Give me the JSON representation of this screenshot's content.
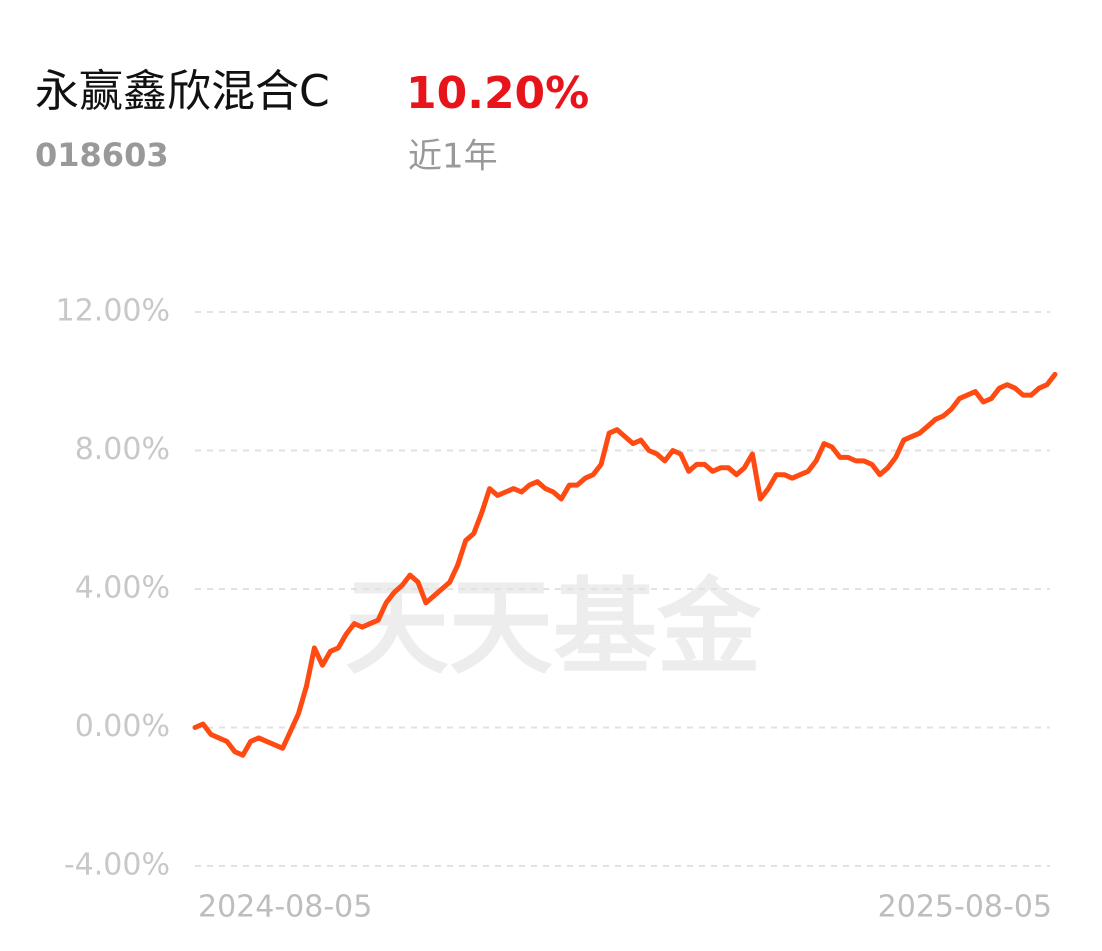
{
  "header": {
    "name": "永赢鑫欣混合C",
    "return": "10.20%",
    "code": "018603",
    "period": "近1年"
  },
  "watermark": "天天基金",
  "chart_data": {
    "type": "line",
    "categories": [
      "2024-08-05",
      null,
      null,
      null,
      null,
      null,
      null,
      null,
      null,
      null,
      null,
      null,
      null,
      null,
      null,
      null,
      null,
      null,
      null,
      null,
      null,
      null,
      null,
      null,
      null,
      null,
      null,
      null,
      null,
      null,
      null,
      null,
      null,
      null,
      null,
      null,
      null,
      null,
      null,
      null,
      null,
      null,
      null,
      null,
      null,
      null,
      null,
      null,
      null,
      null,
      null,
      null,
      null,
      null,
      null,
      null,
      null,
      null,
      null,
      null,
      null,
      null,
      null,
      null,
      null,
      null,
      null,
      null,
      null,
      null,
      null,
      null,
      null,
      null,
      null,
      null,
      null,
      null,
      null,
      null,
      null,
      null,
      null,
      null,
      null,
      null,
      null,
      null,
      null,
      null,
      null,
      null,
      null,
      null,
      null,
      null,
      null,
      null,
      null,
      null,
      null,
      null,
      null,
      null,
      null,
      null,
      null,
      null,
      "2025-08-05"
    ],
    "series": [
      {
        "color": "#ff4a12",
        "values": [
          0.0,
          0.1,
          -0.2,
          -0.3,
          -0.4,
          -0.7,
          -0.8,
          -0.4,
          -0.3,
          -0.4,
          -0.5,
          -0.6,
          -0.1,
          0.4,
          1.2,
          2.3,
          1.8,
          2.2,
          2.3,
          2.7,
          3.0,
          2.9,
          3.0,
          3.1,
          3.6,
          3.9,
          4.1,
          4.4,
          4.2,
          3.6,
          3.8,
          4.0,
          4.2,
          4.7,
          5.4,
          5.6,
          6.2,
          6.9,
          6.7,
          6.8,
          6.9,
          6.8,
          7.0,
          7.1,
          6.9,
          6.8,
          6.6,
          7.0,
          7.0,
          7.2,
          7.3,
          7.6,
          8.5,
          8.6,
          8.4,
          8.2,
          8.3,
          8.0,
          7.9,
          7.7,
          8.0,
          7.9,
          7.4,
          7.6,
          7.6,
          7.4,
          7.5,
          7.5,
          7.3,
          7.5,
          7.9,
          6.6,
          6.9,
          7.3,
          7.3,
          7.2,
          7.3,
          7.4,
          7.7,
          8.2,
          8.1,
          7.8,
          7.8,
          7.7,
          7.7,
          7.6,
          7.3,
          7.5,
          7.8,
          8.3,
          8.4,
          8.5,
          8.7,
          8.9,
          9.0,
          9.2,
          9.5,
          9.6,
          9.7,
          9.4,
          9.5,
          9.8,
          9.9,
          9.8,
          9.6,
          9.6,
          9.8,
          9.9,
          10.2
        ]
      }
    ],
    "ylim": [
      -4,
      12
    ],
    "yticks": [
      {
        "value": -4,
        "label": "-4.00%"
      },
      {
        "value": 0,
        "label": "0.00%"
      },
      {
        "value": 4,
        "label": "4.00%"
      },
      {
        "value": 8,
        "label": "8.00%"
      },
      {
        "value": 12,
        "label": "12.00%"
      }
    ],
    "grid": true
  }
}
